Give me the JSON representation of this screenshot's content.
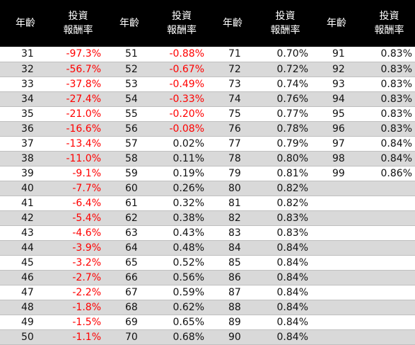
{
  "table": {
    "headers": [
      {
        "age": "年齡",
        "ret_line1": "投資",
        "ret_line2": "報酬率"
      },
      {
        "age": "年齡",
        "ret_line1": "投資",
        "ret_line2": "報酬率"
      },
      {
        "age": "年齡",
        "ret_line1": "投資",
        "ret_line2": "報酬率"
      },
      {
        "age": "年齡",
        "ret_line1": "投資",
        "ret_line2": "報酬率"
      }
    ],
    "rows": [
      [
        [
          "31",
          "-97.3%"
        ],
        [
          "51",
          "-0.88%"
        ],
        [
          "71",
          "0.70%"
        ],
        [
          "91",
          "0.83%"
        ]
      ],
      [
        [
          "32",
          "-56.7%"
        ],
        [
          "52",
          "-0.67%"
        ],
        [
          "72",
          "0.72%"
        ],
        [
          "92",
          "0.83%"
        ]
      ],
      [
        [
          "33",
          "-37.8%"
        ],
        [
          "53",
          "-0.49%"
        ],
        [
          "73",
          "0.74%"
        ],
        [
          "93",
          "0.83%"
        ]
      ],
      [
        [
          "34",
          "-27.4%"
        ],
        [
          "54",
          "-0.33%"
        ],
        [
          "74",
          "0.76%"
        ],
        [
          "94",
          "0.83%"
        ]
      ],
      [
        [
          "35",
          "-21.0%"
        ],
        [
          "55",
          "-0.20%"
        ],
        [
          "75",
          "0.77%"
        ],
        [
          "95",
          "0.83%"
        ]
      ],
      [
        [
          "36",
          "-16.6%"
        ],
        [
          "56",
          "-0.08%"
        ],
        [
          "76",
          "0.78%"
        ],
        [
          "96",
          "0.83%"
        ]
      ],
      [
        [
          "37",
          "-13.4%"
        ],
        [
          "57",
          "0.02%"
        ],
        [
          "77",
          "0.79%"
        ],
        [
          "97",
          "0.84%"
        ]
      ],
      [
        [
          "38",
          "-11.0%"
        ],
        [
          "58",
          "0.11%"
        ],
        [
          "78",
          "0.80%"
        ],
        [
          "98",
          "0.84%"
        ]
      ],
      [
        [
          "39",
          "-9.1%"
        ],
        [
          "59",
          "0.19%"
        ],
        [
          "79",
          "0.81%"
        ],
        [
          "99",
          "0.86%"
        ]
      ],
      [
        [
          "40",
          "-7.7%"
        ],
        [
          "60",
          "0.26%"
        ],
        [
          "80",
          "0.82%"
        ],
        [
          "",
          ""
        ]
      ],
      [
        [
          "41",
          "-6.4%"
        ],
        [
          "61",
          "0.32%"
        ],
        [
          "81",
          "0.82%"
        ],
        [
          "",
          ""
        ]
      ],
      [
        [
          "42",
          "-5.4%"
        ],
        [
          "62",
          "0.38%"
        ],
        [
          "82",
          "0.83%"
        ],
        [
          "",
          ""
        ]
      ],
      [
        [
          "43",
          "-4.6%"
        ],
        [
          "63",
          "0.43%"
        ],
        [
          "83",
          "0.83%"
        ],
        [
          "",
          ""
        ]
      ],
      [
        [
          "44",
          "-3.9%"
        ],
        [
          "64",
          "0.48%"
        ],
        [
          "84",
          "0.84%"
        ],
        [
          "",
          ""
        ]
      ],
      [
        [
          "45",
          "-3.2%"
        ],
        [
          "65",
          "0.52%"
        ],
        [
          "85",
          "0.84%"
        ],
        [
          "",
          ""
        ]
      ],
      [
        [
          "46",
          "-2.7%"
        ],
        [
          "66",
          "0.56%"
        ],
        [
          "86",
          "0.84%"
        ],
        [
          "",
          ""
        ]
      ],
      [
        [
          "47",
          "-2.2%"
        ],
        [
          "67",
          "0.59%"
        ],
        [
          "87",
          "0.84%"
        ],
        [
          "",
          ""
        ]
      ],
      [
        [
          "48",
          "-1.8%"
        ],
        [
          "68",
          "0.62%"
        ],
        [
          "88",
          "0.84%"
        ],
        [
          "",
          ""
        ]
      ],
      [
        [
          "49",
          "-1.5%"
        ],
        [
          "69",
          "0.65%"
        ],
        [
          "89",
          "0.84%"
        ],
        [
          "",
          ""
        ]
      ],
      [
        [
          "50",
          "-1.1%"
        ],
        [
          "70",
          "0.68%"
        ],
        [
          "90",
          "0.84%"
        ],
        [
          "",
          ""
        ]
      ]
    ]
  },
  "colors": {
    "header_bg": "#000000",
    "header_text": "#ffffff",
    "negative_text": "#ff0000",
    "stripe_bg": "#d9d9d9"
  }
}
